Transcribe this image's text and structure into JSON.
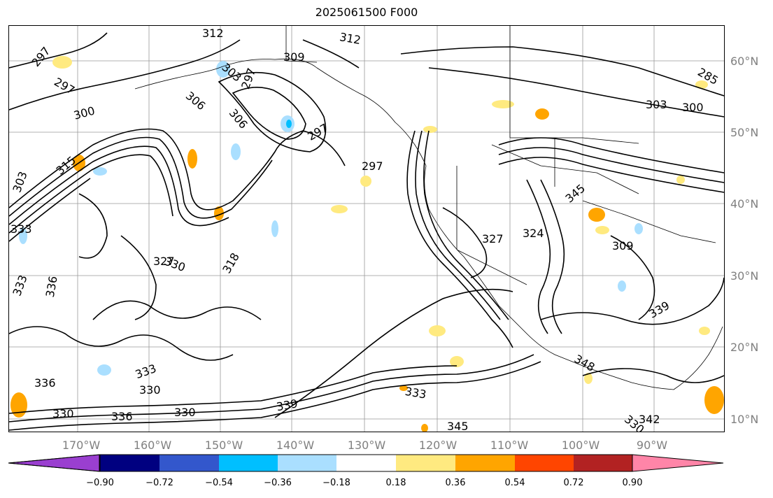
{
  "title": "2025061500 F000",
  "lat_labels": [
    "60°N",
    "50°N",
    "40°N",
    "30°N",
    "20°N",
    "10°N"
  ],
  "lon_labels": [
    "170°W",
    "160°W",
    "150°W",
    "140°W",
    "130°W",
    "120°W",
    "110°W",
    "100°W",
    "90°W"
  ],
  "colorbar": {
    "ticks": [
      "−0.90",
      "−0.72",
      "−0.54",
      "−0.36",
      "−0.18",
      "0.18",
      "0.36",
      "0.54",
      "0.72",
      "0.90"
    ],
    "colors": [
      "#9a3fd0",
      "#000080",
      "#3357cc",
      "#00bfff",
      "#aadfff",
      "#ffffff",
      "#ffea80",
      "#ffa500",
      "#ff4500",
      "#b22222",
      "#ff85a8"
    ]
  },
  "contour_labels": [
    {
      "text": "312"
    },
    {
      "text": "312"
    },
    {
      "text": "309"
    },
    {
      "text": "297"
    },
    {
      "text": "297"
    },
    {
      "text": "303"
    },
    {
      "text": "297"
    },
    {
      "text": "306"
    },
    {
      "text": "300"
    },
    {
      "text": "306"
    },
    {
      "text": "297"
    },
    {
      "text": "297"
    },
    {
      "text": "303"
    },
    {
      "text": "315"
    },
    {
      "text": "333"
    },
    {
      "text": "327"
    },
    {
      "text": "330"
    },
    {
      "text": "318"
    },
    {
      "text": "333"
    },
    {
      "text": "336"
    },
    {
      "text": "327"
    },
    {
      "text": "324"
    },
    {
      "text": "309"
    },
    {
      "text": "339"
    },
    {
      "text": "345"
    },
    {
      "text": "348"
    },
    {
      "text": "342"
    },
    {
      "text": "333"
    },
    {
      "text": "330"
    },
    {
      "text": "330"
    },
    {
      "text": "330"
    },
    {
      "text": "336"
    },
    {
      "text": "333"
    },
    {
      "text": "336"
    },
    {
      "text": "345"
    },
    {
      "text": "339"
    },
    {
      "text": "330"
    },
    {
      "text": "285"
    },
    {
      "text": "303"
    },
    {
      "text": "300"
    }
  ]
}
